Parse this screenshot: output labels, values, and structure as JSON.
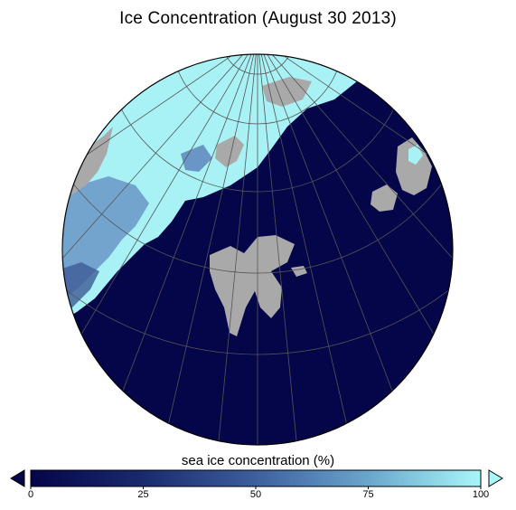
{
  "title": "Ice Concentration (August 30 2013)",
  "colorbar": {
    "label": "sea ice concentration (%)",
    "ticks": [
      "0",
      "25",
      "50",
      "75",
      "100"
    ],
    "min": 0,
    "max": 100,
    "color_low": "#05054a",
    "color_high": "#a8f6f8",
    "under_color": "#05054a",
    "over_color": "#a8f6f8"
  },
  "map": {
    "projection": "polar stereographic",
    "ocean_color": "#05054a",
    "land_color": "#a9a9a9",
    "ice_color": "#a8f2f6",
    "gridline_color": "#555555"
  }
}
